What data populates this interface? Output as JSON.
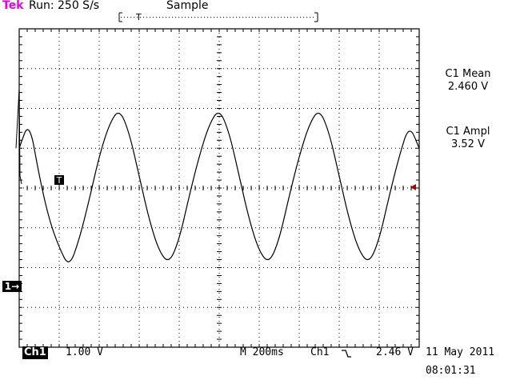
{
  "header": {
    "brand": "Tek",
    "run_status": "Run: 250 S/s",
    "acquisition_mode": "Sample"
  },
  "measurements": [
    {
      "label": "C1 Mean",
      "value": "2.460 V"
    },
    {
      "label": "C1 Ampl",
      "value": "3.52 V"
    }
  ],
  "channel_marker": "1→",
  "trigger_marker": "T",
  "footer": {
    "channel": "Ch1",
    "volts_per_div": "1.00 V",
    "timebase": "M 200ms",
    "trigger_source": "Ch1",
    "trigger_level": "2.46 V",
    "date": "11 May 2011",
    "time": "08:01:31"
  },
  "colors": {
    "brand": "#e800e8",
    "trace": "#000000",
    "trigger_level_marker": "#b00000"
  },
  "chart_data": {
    "type": "line",
    "title": "",
    "xlabel": "",
    "ylabel": "",
    "grid": true,
    "x_divisions": 10,
    "y_divisions": 8,
    "volts_per_div": 1.0,
    "seconds_per_div": 0.2,
    "series": [
      {
        "x": [
          0.0,
          0.05,
          0.1,
          0.15,
          0.2,
          0.25,
          0.3,
          0.35,
          0.4,
          0.45,
          0.5,
          0.55,
          0.6,
          0.65,
          0.7,
          0.75,
          0.8,
          0.85,
          0.9,
          0.95,
          1.0,
          1.05,
          1.1,
          1.15,
          1.2,
          1.25,
          1.3,
          1.35,
          1.4,
          1.45,
          1.5,
          1.55,
          1.6,
          1.65,
          1.7,
          1.75,
          1.8,
          1.85,
          1.9,
          1.95,
          2.0
        ],
        "y": [
          1.0,
          1.7,
          0.3,
          -0.8,
          -1.5,
          -2.0,
          -1.3,
          -0.3,
          0.8,
          1.6,
          2.0,
          1.4,
          0.3,
          -0.8,
          -1.6,
          -1.9,
          -1.3,
          -0.2,
          0.8,
          1.6,
          2.0,
          1.4,
          0.3,
          -0.8,
          -1.6,
          -1.9,
          -1.3,
          -0.2,
          0.8,
          1.6,
          2.0,
          1.4,
          0.3,
          -0.8,
          -1.6,
          -1.9,
          -1.3,
          -0.2,
          0.8,
          1.6,
          1.0
        ]
      }
    ],
    "spike": {
      "x": 0.2,
      "y_peak": 2.5
    }
  }
}
